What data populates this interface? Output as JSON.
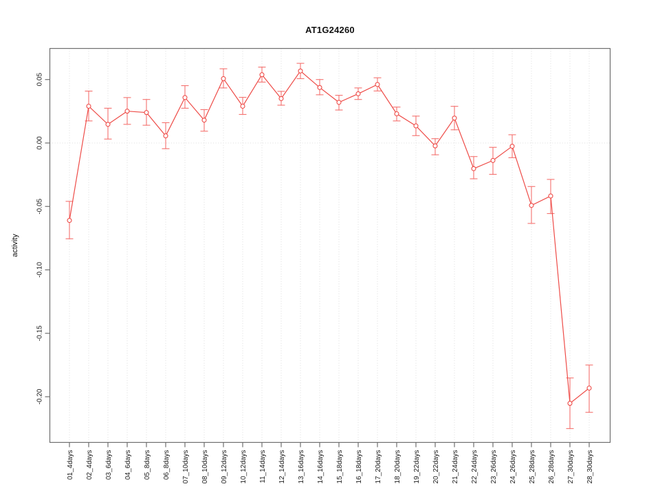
{
  "page": {
    "background": "#ffffff"
  },
  "chart_data": {
    "type": "line",
    "title": "AT1G24260",
    "xlabel": "",
    "ylabel": "activity",
    "legend": "none",
    "marker": "open-circle",
    "error_bars": true,
    "categories": [
      "01_4days",
      "02_4days",
      "03_6days",
      "04_6days",
      "05_8days",
      "06_8days",
      "07_10days",
      "08_10days",
      "09_12days",
      "10_12days",
      "11_14days",
      "12_14days",
      "13_16days",
      "14_16days",
      "15_18days",
      "16_18days",
      "17_20days",
      "18_20days",
      "19_22days",
      "20_22days",
      "21_24days",
      "22_24days",
      "23_26days",
      "24_26days",
      "25_28days",
      "26_28days",
      "27_30days",
      "28_30days"
    ],
    "values": [
      -0.061,
      0.029,
      0.0147,
      0.0251,
      0.024,
      0.0056,
      0.0358,
      0.018,
      0.0507,
      0.029,
      0.0538,
      0.035,
      0.0567,
      0.0437,
      0.032,
      0.0388,
      0.0461,
      0.023,
      0.0135,
      -0.0023,
      0.0196,
      -0.0202,
      -0.0138,
      -0.0026,
      -0.0492,
      -0.0418,
      -0.2052,
      -0.1932
    ],
    "error_high": [
      -0.046,
      0.0409,
      0.0274,
      0.0358,
      0.0343,
      0.016,
      0.0452,
      0.0263,
      0.0585,
      0.036,
      0.0598,
      0.0407,
      0.0628,
      0.05,
      0.0376,
      0.0434,
      0.0514,
      0.0283,
      0.0212,
      0.0034,
      0.0289,
      -0.0107,
      -0.0034,
      0.0065,
      -0.0343,
      -0.0287,
      -0.1852,
      -0.175
    ],
    "error_low": [
      -0.0755,
      0.0174,
      0.0031,
      0.0147,
      0.014,
      -0.0045,
      0.0274,
      0.0093,
      0.0434,
      0.0225,
      0.048,
      0.0298,
      0.0507,
      0.038,
      0.026,
      0.0343,
      0.041,
      0.0174,
      0.0058,
      -0.0093,
      0.0104,
      -0.0282,
      -0.0247,
      -0.0116,
      -0.0634,
      -0.0556,
      -0.2251,
      -0.2123
    ],
    "yticks": [
      0.05,
      0.0,
      -0.05,
      -0.1,
      -0.15,
      -0.2
    ],
    "ytick_labels": [
      "0.05",
      "0.00",
      "-0.05",
      "-0.10",
      "-0.15",
      "-0.20"
    ],
    "ylim": [
      -0.236,
      0.0745
    ],
    "grid": {
      "vertical_dotted_per_category": true,
      "horizontal_dotted_at": 0
    },
    "colors": {
      "series": "#ee4b47",
      "error_bar": "#f4706d",
      "grid": "#dcdcdc",
      "axis": "#6e6e6e",
      "text": "#1a1a1a",
      "marker_fill": "#ffffff"
    }
  }
}
